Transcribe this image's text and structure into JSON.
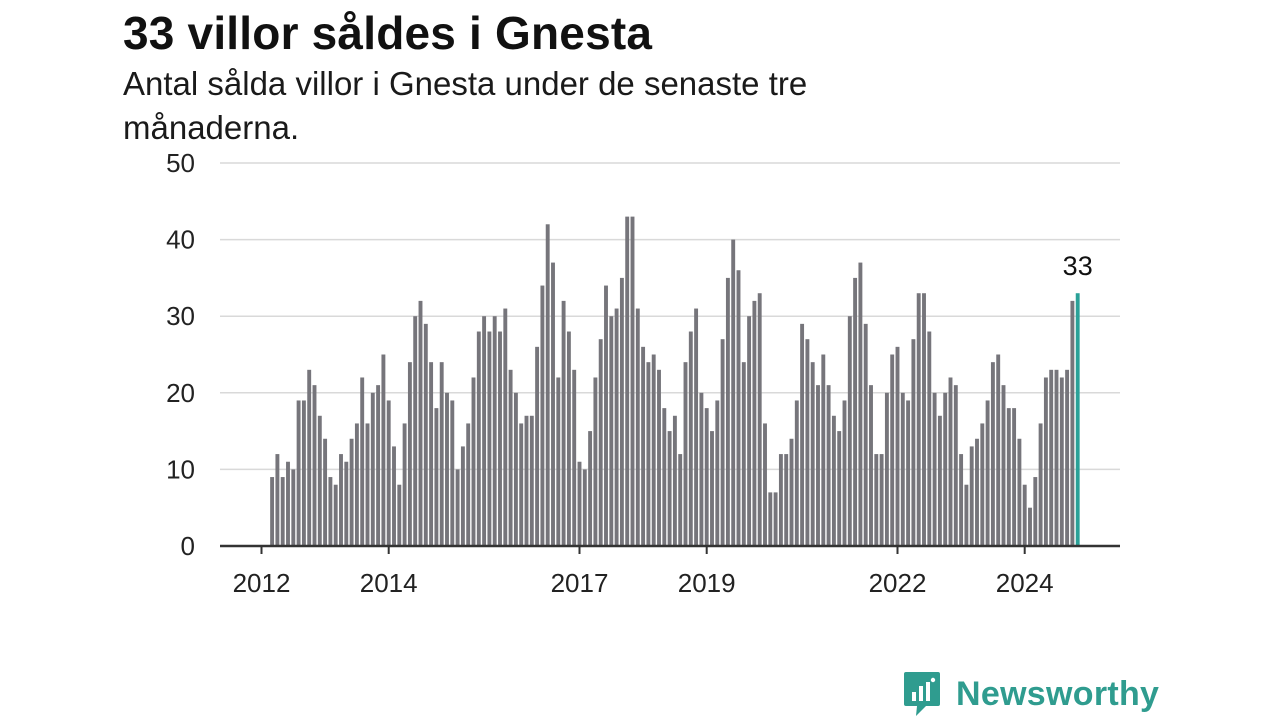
{
  "header": {
    "title": "33 villor såldes i Gnesta",
    "subtitle": "Antal sålda villor i Gnesta under de senaste tre månaderna."
  },
  "brand": {
    "name": "Newsworthy",
    "icon": "newsworthy-logo-icon",
    "color": "#2f9c8f"
  },
  "colors": {
    "bar": "#76757b",
    "highlight": "#2aa198",
    "grid": "#d9d9d9",
    "axis": "#333333"
  },
  "chart_data": {
    "type": "bar",
    "title": "33 villor såldes i Gnesta",
    "subtitle": "Antal sålda villor i Gnesta under de senaste tre månaderna.",
    "xlabel": "",
    "ylabel": "",
    "ylim": [
      0,
      50
    ],
    "yticks": [
      0,
      10,
      20,
      30,
      40,
      50
    ],
    "xlim": [
      "2012-01",
      "2025-03"
    ],
    "xticks": [
      {
        "label": "2012",
        "index": 0
      },
      {
        "label": "2014",
        "index": 24
      },
      {
        "label": "2017",
        "index": 60
      },
      {
        "label": "2019",
        "index": 84
      },
      {
        "label": "2022",
        "index": 120
      },
      {
        "label": "2024",
        "index": 144
      }
    ],
    "start_month": "2012-03",
    "values": [
      9,
      12,
      9,
      11,
      10,
      19,
      19,
      23,
      21,
      17,
      14,
      9,
      8,
      12,
      11,
      14,
      16,
      22,
      16,
      20,
      21,
      25,
      19,
      13,
      8,
      16,
      24,
      30,
      32,
      29,
      24,
      18,
      24,
      20,
      19,
      10,
      13,
      16,
      22,
      28,
      30,
      28,
      30,
      28,
      31,
      23,
      20,
      16,
      17,
      17,
      26,
      34,
      42,
      37,
      22,
      32,
      28,
      23,
      11,
      10,
      15,
      22,
      27,
      34,
      30,
      31,
      35,
      43,
      43,
      31,
      26,
      24,
      25,
      23,
      18,
      15,
      17,
      12,
      24,
      28,
      31,
      20,
      18,
      15,
      19,
      27,
      35,
      40,
      36,
      24,
      30,
      32,
      33,
      16,
      7,
      7,
      12,
      12,
      14,
      19,
      29,
      27,
      24,
      21,
      25,
      21,
      17,
      15,
      19,
      30,
      35,
      37,
      29,
      21,
      12,
      12,
      20,
      25,
      26,
      20,
      19,
      27,
      33,
      33,
      28,
      20,
      17,
      20,
      22,
      21,
      12,
      8,
      13,
      14,
      16,
      19,
      24,
      25,
      21,
      18,
      18,
      14,
      8,
      5,
      9,
      16,
      22,
      23,
      23,
      22,
      23,
      32,
      33
    ],
    "highlight": {
      "index": 152,
      "value": 33,
      "label": "33"
    }
  }
}
